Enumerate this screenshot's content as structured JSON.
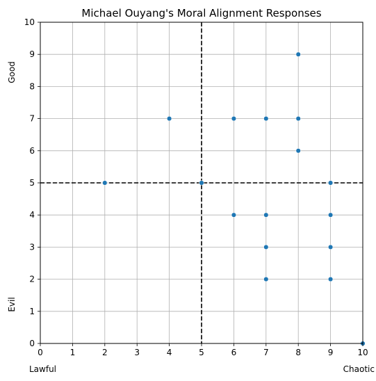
{
  "chart_data": {
    "type": "scatter",
    "title": "Michael Ouyang's Moral Alignment Responses",
    "xlim": [
      0,
      10
    ],
    "ylim": [
      0,
      10
    ],
    "x_ticks": [
      "0",
      "1",
      "2",
      "3",
      "4",
      "5",
      "6",
      "7",
      "8",
      "9",
      "10"
    ],
    "y_ticks": [
      "0",
      "1",
      "2",
      "3",
      "4",
      "5",
      "6",
      "7",
      "8",
      "9",
      "10"
    ],
    "grid": true,
    "x_axis_labels": {
      "left": "Lawful",
      "right": "Chaotic"
    },
    "y_axis_labels": {
      "top": "Good",
      "bottom": "Evil"
    },
    "reference_lines": {
      "x": 5,
      "y": 5
    },
    "point_color": "#1f77b4",
    "points": [
      {
        "x": 2,
        "y": 5
      },
      {
        "x": 4,
        "y": 7
      },
      {
        "x": 5,
        "y": 5
      },
      {
        "x": 6,
        "y": 7
      },
      {
        "x": 6,
        "y": 4
      },
      {
        "x": 7,
        "y": 7
      },
      {
        "x": 7,
        "y": 4
      },
      {
        "x": 7,
        "y": 3
      },
      {
        "x": 7,
        "y": 2
      },
      {
        "x": 8,
        "y": 9
      },
      {
        "x": 8,
        "y": 7
      },
      {
        "x": 8,
        "y": 6
      },
      {
        "x": 9,
        "y": 5
      },
      {
        "x": 9,
        "y": 4
      },
      {
        "x": 9,
        "y": 3
      },
      {
        "x": 9,
        "y": 2
      },
      {
        "x": 10,
        "y": 0
      }
    ]
  }
}
